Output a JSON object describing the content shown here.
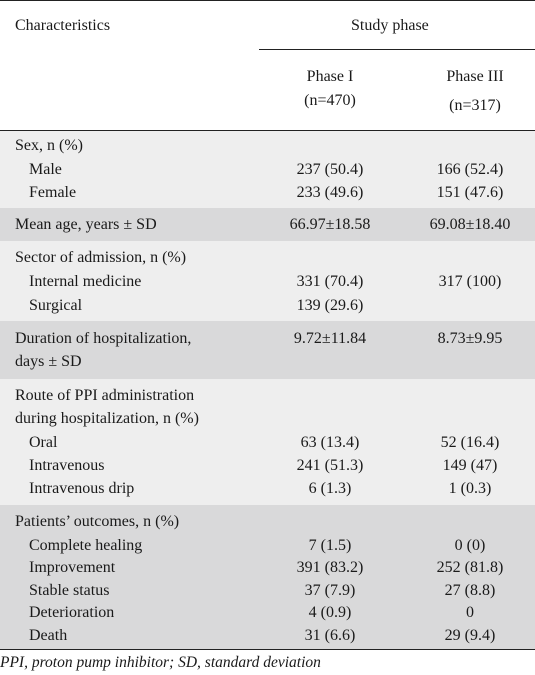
{
  "header": {
    "characteristics": "Characteristics",
    "study_phase": "Study phase",
    "phase1": "Phase I",
    "phase1_n": "(n=470)",
    "phase3": "Phase III",
    "phase3_n": "(n=317)"
  },
  "sections": [
    {
      "shade": "light",
      "rows": [
        {
          "label": "Sex, n (%)",
          "indent": false,
          "v1": "",
          "v3": ""
        },
        {
          "label": "Male",
          "indent": true,
          "v1": "237 (50.4)",
          "v3": "166 (52.4)"
        },
        {
          "label": "Female",
          "indent": true,
          "v1": "233 (49.6)",
          "v3": "151 (47.6)"
        }
      ]
    },
    {
      "shade": "dark",
      "rows": [
        {
          "label": "Mean age, years ± SD",
          "indent": false,
          "v1": "66.97±18.58",
          "v3": "69.08±18.40"
        }
      ]
    },
    {
      "shade": "light",
      "rows": [
        {
          "label": "Sector of admission, n (%)",
          "indent": false,
          "v1": "",
          "v3": ""
        },
        {
          "label": "Internal medicine",
          "indent": true,
          "v1": "331 (70.4)",
          "v3": "317 (100)"
        },
        {
          "label": "Surgical",
          "indent": true,
          "v1": "139 (29.6)",
          "v3": ""
        }
      ]
    },
    {
      "shade": "dark",
      "rows": [
        {
          "label": "Duration of hospitalization,",
          "indent": false,
          "v1": "9.72±11.84",
          "v3": "8.73±9.95"
        },
        {
          "label": "days ± SD",
          "indent": false,
          "v1": "",
          "v3": ""
        }
      ]
    },
    {
      "shade": "light",
      "rows": [
        {
          "label": "Route of PPI administration",
          "indent": false,
          "v1": "",
          "v3": ""
        },
        {
          "label": "during hospitalization, n (%)",
          "indent": false,
          "v1": "",
          "v3": ""
        },
        {
          "label": "Oral",
          "indent": true,
          "v1": "63 (13.4)",
          "v3": "52 (16.4)"
        },
        {
          "label": "Intravenous",
          "indent": true,
          "v1": "241 (51.3)",
          "v3": "149 (47)"
        },
        {
          "label": "Intravenous drip",
          "indent": true,
          "v1": "6 (1.3)",
          "v3": "1 (0.3)"
        }
      ]
    },
    {
      "shade": "dark",
      "rows": [
        {
          "label": "Patients’ outcomes, n (%)",
          "indent": false,
          "v1": "",
          "v3": ""
        },
        {
          "label": "Complete healing",
          "indent": true,
          "v1": "7 (1.5)",
          "v3": "0 (0)"
        },
        {
          "label": "Improvement",
          "indent": true,
          "v1": "391 (83.2)",
          "v3": "252 (81.8)"
        },
        {
          "label": "Stable status",
          "indent": true,
          "v1": "37 (7.9)",
          "v3": "27 (8.8)"
        },
        {
          "label": "Deterioration",
          "indent": true,
          "v1": "4 (0.9)",
          "v3": "0"
        },
        {
          "label": "Death",
          "indent": true,
          "v1": "31 (6.6)",
          "v3": "29 (9.4)"
        }
      ]
    }
  ],
  "footnote": "PPI, proton pump inhibitor; SD, standard deviation"
}
